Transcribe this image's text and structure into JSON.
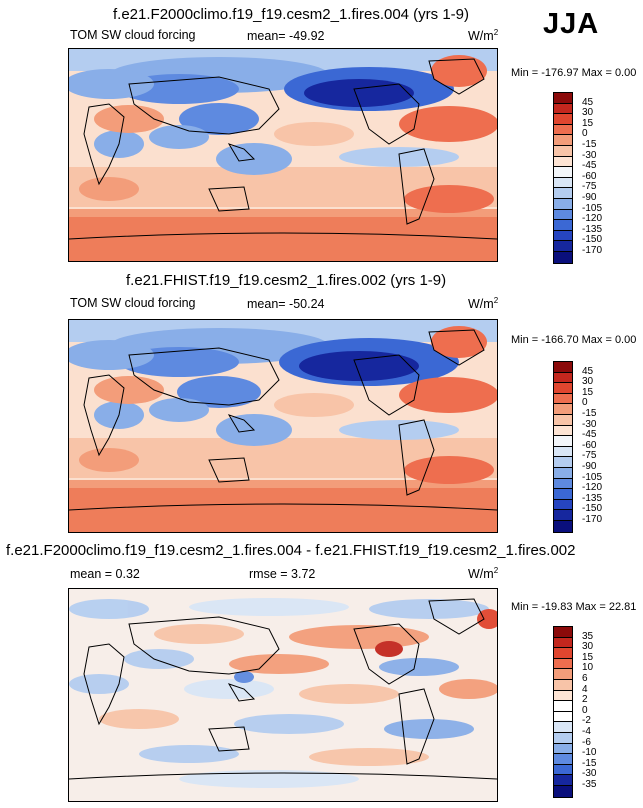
{
  "season": "JJA",
  "panels": [
    {
      "title": "f.e21.F2000climo.f19_f19.cesm2_1.fires.004 (yrs 1-9)",
      "subtitle": "TOM SW cloud forcing",
      "mean": "mean= -49.92",
      "units": "W/m",
      "units_sup": "2",
      "minmax": "Min = -176.97 Max =   0.00",
      "colorbar": {
        "labels": [
          "45",
          "30",
          "15",
          "0",
          "-15",
          "-30",
          "-45",
          "-60",
          "-75",
          "-90",
          "-105",
          "-120",
          "-135",
          "-150",
          "-170"
        ],
        "colors": [
          "#8b0a0a",
          "#c3271e",
          "#e0462f",
          "#ee6e4f",
          "#f39d7a",
          "#f8c4a8",
          "#fde4d4",
          "#f3f6fa",
          "#d9e6f6",
          "#b4cdf0",
          "#89aee8",
          "#5e8ae0",
          "#3b68d4",
          "#2645c0",
          "#16279e",
          "#0a0f7c"
        ]
      },
      "chart_data": {
        "type": "heatmap",
        "variable": "TOM SW cloud forcing",
        "units": "W/m2",
        "projection": "global lat-lon, centered 180",
        "mean": -49.92,
        "min": -176.97,
        "max": 0.0,
        "contour_levels": [
          45,
          30,
          15,
          0,
          -15,
          -30,
          -45,
          -60,
          -75,
          -90,
          -105,
          -120,
          -135,
          -150,
          -170
        ]
      }
    },
    {
      "title": "f.e21.FHIST.f19_f19.cesm2_1.fires.002 (yrs 1-9)",
      "subtitle": "TOM SW cloud forcing",
      "mean": "mean= -50.24",
      "units": "W/m",
      "units_sup": "2",
      "minmax": "Min = -166.70 Max =   0.00",
      "colorbar": {
        "labels": [
          "45",
          "30",
          "15",
          "0",
          "-15",
          "-30",
          "-45",
          "-60",
          "-75",
          "-90",
          "-105",
          "-120",
          "-135",
          "-150",
          "-170"
        ],
        "colors": [
          "#8b0a0a",
          "#c3271e",
          "#e0462f",
          "#ee6e4f",
          "#f39d7a",
          "#f8c4a8",
          "#fde4d4",
          "#f3f6fa",
          "#d9e6f6",
          "#b4cdf0",
          "#89aee8",
          "#5e8ae0",
          "#3b68d4",
          "#2645c0",
          "#16279e",
          "#0a0f7c"
        ]
      },
      "chart_data": {
        "type": "heatmap",
        "variable": "TOM SW cloud forcing",
        "units": "W/m2",
        "projection": "global lat-lon, centered 180",
        "mean": -50.24,
        "min": -166.7,
        "max": 0.0,
        "contour_levels": [
          45,
          30,
          15,
          0,
          -15,
          -30,
          -45,
          -60,
          -75,
          -90,
          -105,
          -120,
          -135,
          -150,
          -170
        ]
      }
    },
    {
      "title": "f.e21.F2000climo.f19_f19.cesm2_1.fires.004 - f.e21.FHIST.f19_f19.cesm2_1.fires.002",
      "mean": "mean =   0.32",
      "rmse": "rmse =   3.72",
      "units": "W/m",
      "units_sup": "2",
      "minmax": "Min = -19.83 Max =  22.81",
      "colorbar": {
        "labels": [
          "35",
          "30",
          "15",
          "10",
          "6",
          "4",
          "2",
          "0",
          "-2",
          "-4",
          "-6",
          "-10",
          "-15",
          "-30",
          "-35"
        ],
        "colors": [
          "#8b0a0a",
          "#c3271e",
          "#e0462f",
          "#ee6e4f",
          "#f39d7a",
          "#f8c4a8",
          "#fde4d4",
          "#ffffff",
          "#ffffff",
          "#d9e6f6",
          "#b4cdf0",
          "#89aee8",
          "#5e8ae0",
          "#3b68d4",
          "#16279e",
          "#0a0f7c"
        ]
      },
      "chart_data": {
        "type": "heatmap",
        "variable": "TOM SW cloud forcing difference",
        "units": "W/m2",
        "projection": "global lat-lon, centered 180",
        "mean": 0.32,
        "rmse": 3.72,
        "min": -19.83,
        "max": 22.81,
        "contour_levels": [
          35,
          30,
          15,
          10,
          6,
          4,
          2,
          0,
          -2,
          -4,
          -6,
          -10,
          -15,
          -30,
          -35
        ]
      }
    }
  ]
}
